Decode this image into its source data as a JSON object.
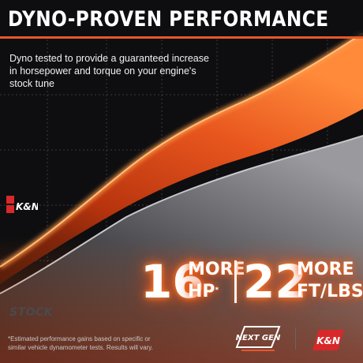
{
  "title": "DYNO-PROVEN PERFORMANCE",
  "subtitle": "Dyno tested to provide a guaranteed increase in horsepower and torque on your engine's stock tune",
  "curves": {
    "kn_label": "K&N",
    "stock_label": "STOCK"
  },
  "stats": {
    "hp_value": "16",
    "hp_line1": "MORE",
    "hp_line2": "HP",
    "hp_marker": "*",
    "torque_value": "22",
    "torque_line1": "MORE",
    "torque_line2": "FT/LBS",
    "torque_marker": "*"
  },
  "footnote": "*Estimated performance gains based on specific or similar vehicle dynamometer tests. Results will vary.",
  "logos": {
    "next_gen": "NEXT GEN",
    "kn": "K&N"
  },
  "colors": {
    "accent_orange": "#e8562a",
    "kn_red": "#d8282a",
    "background": "#0e0e10",
    "stock_curve": "#8e8e92"
  }
}
